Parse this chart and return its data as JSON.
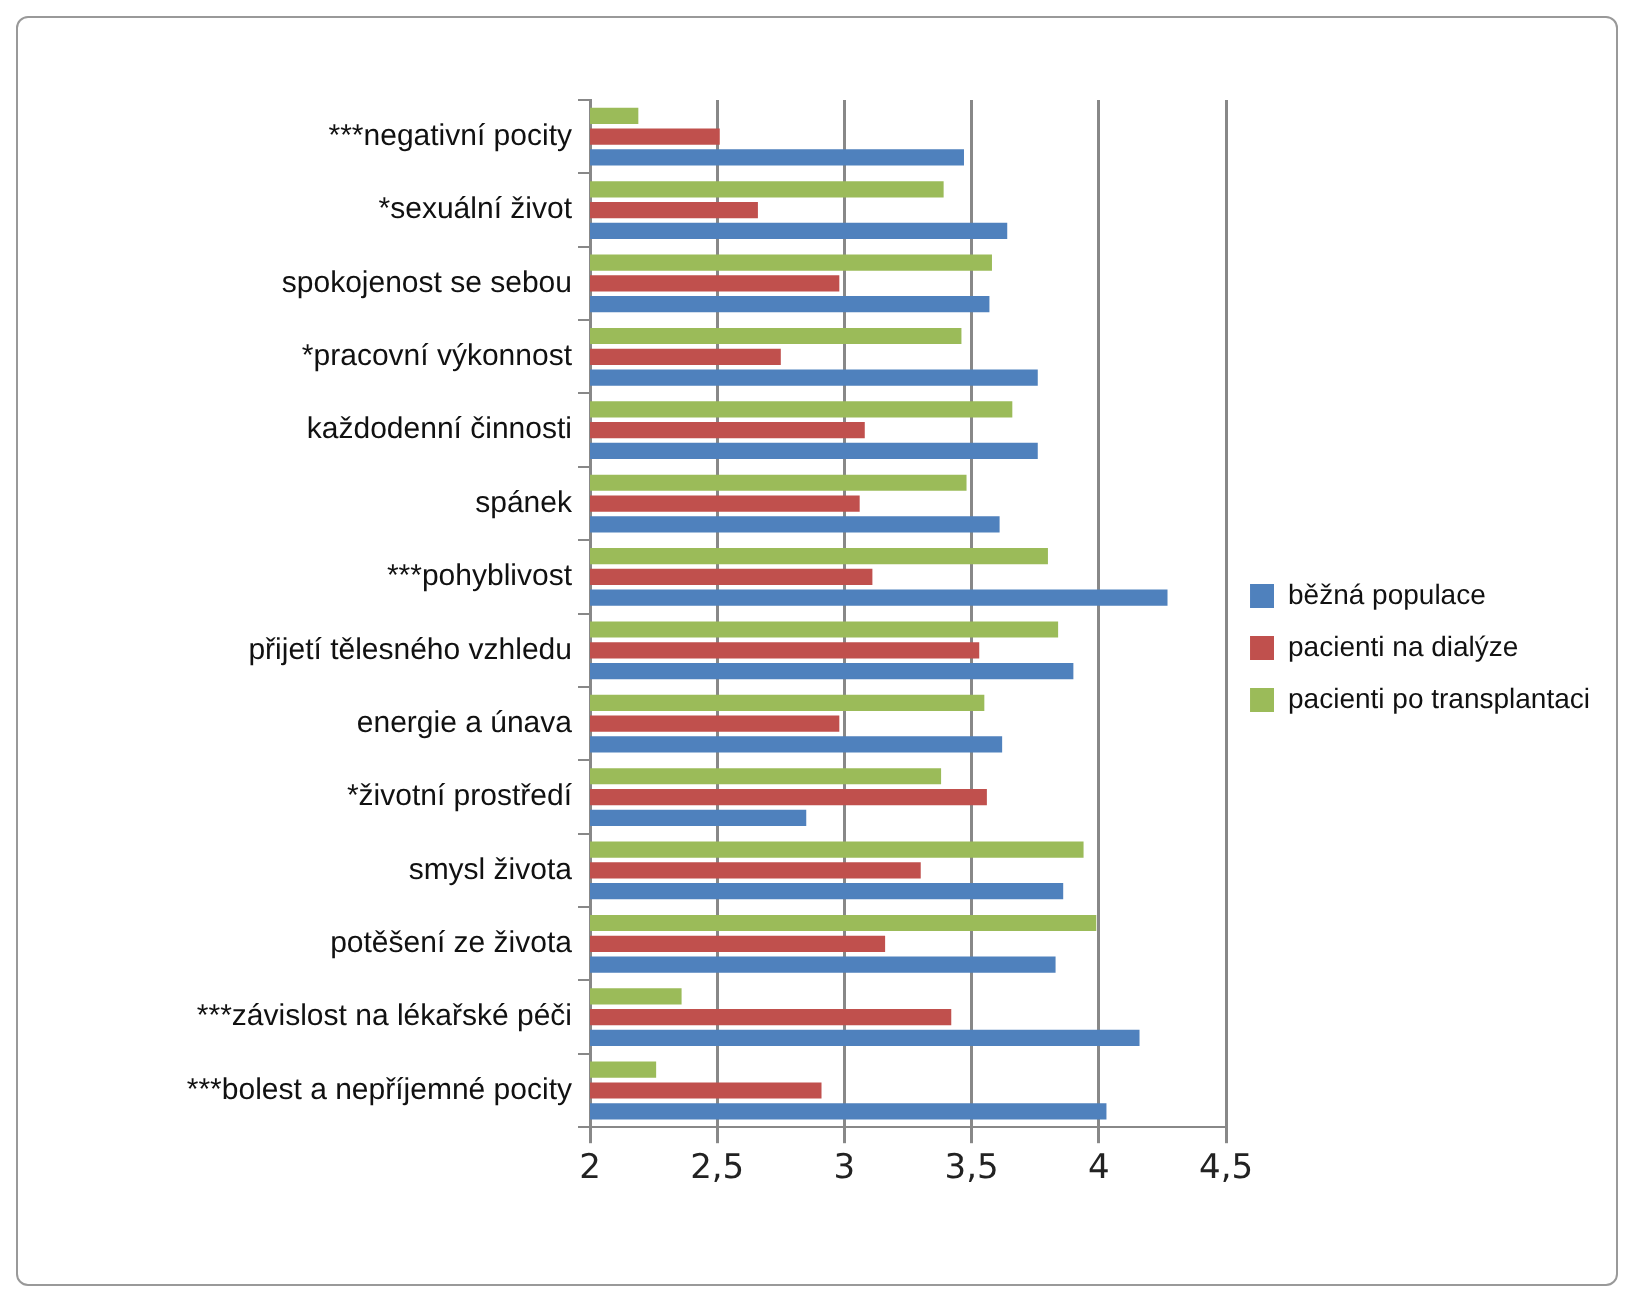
{
  "chart_data": {
    "type": "bar",
    "orientation": "horizontal",
    "categories": [
      "***negativní pocity",
      "*sexuální život",
      "spokojenost se sebou",
      "*pracovní výkonnost",
      "každodenní činnosti",
      "spánek",
      "***pohyblivost",
      "přijetí tělesného vzhledu",
      "energie a únava",
      "*životní prostředí",
      "smysl života",
      "potěšení ze života",
      "***závislost na lékařské péči",
      "***bolest a nepříjemné pocity"
    ],
    "series": [
      {
        "name": "běžná populace",
        "color": "#4f81bd",
        "values": [
          3.47,
          3.64,
          3.57,
          3.76,
          3.76,
          3.61,
          4.27,
          3.9,
          3.62,
          2.85,
          3.86,
          3.83,
          4.16,
          4.03
        ]
      },
      {
        "name": "pacienti na dialýze",
        "color": "#c0504d",
        "values": [
          2.51,
          2.66,
          2.98,
          2.75,
          3.08,
          3.06,
          3.11,
          3.53,
          2.98,
          3.56,
          3.3,
          3.16,
          3.42,
          2.91
        ]
      },
      {
        "name": "pacienti po transplantaci",
        "color": "#9bbb59",
        "values": [
          2.19,
          3.39,
          3.58,
          3.46,
          3.66,
          3.48,
          3.8,
          3.84,
          3.55,
          3.38,
          3.94,
          3.99,
          2.36,
          2.26
        ]
      }
    ],
    "xlim": [
      2,
      4.5
    ],
    "xticks": [
      2,
      {
        "value": 2.5,
        "label": "2,5"
      },
      3,
      {
        "value": 3.5,
        "label": "3,5"
      },
      4,
      {
        "value": 4.5,
        "label": "4,5"
      }
    ],
    "grid": "x",
    "legend": "right"
  }
}
